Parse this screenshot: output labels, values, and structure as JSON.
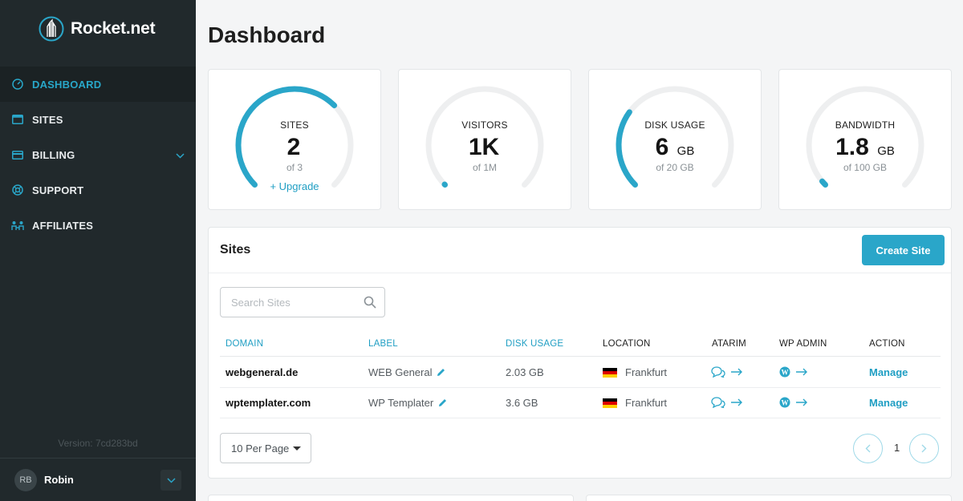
{
  "brand": {
    "name": "Rocket.net"
  },
  "nav": {
    "items": [
      {
        "label": "DASHBOARD",
        "icon": "dashboard-icon",
        "active": true
      },
      {
        "label": "SITES",
        "icon": "sites-icon"
      },
      {
        "label": "BILLING",
        "icon": "billing-icon",
        "has_submenu": true
      },
      {
        "label": "SUPPORT",
        "icon": "support-icon"
      },
      {
        "label": "AFFILIATES",
        "icon": "affiliates-icon"
      }
    ]
  },
  "version": "Version: 7cd283bd",
  "user": {
    "initials": "RB",
    "name": "Robin"
  },
  "page": {
    "title": "Dashboard"
  },
  "stats": [
    {
      "label": "SITES",
      "value": "2",
      "unit": "",
      "sub": "of 3",
      "fraction": 0.667,
      "action": "+ Upgrade"
    },
    {
      "label": "VISITORS",
      "value": "1K",
      "unit": "",
      "sub": "of 1M",
      "fraction": 0.001
    },
    {
      "label": "DISK USAGE",
      "value": "6",
      "unit": "GB",
      "sub": "of 20 GB",
      "fraction": 0.3
    },
    {
      "label": "BANDWIDTH",
      "value": "1.8",
      "unit": "GB",
      "sub": "of 100 GB",
      "fraction": 0.018
    }
  ],
  "sites": {
    "title": "Sites",
    "create_label": "Create Site",
    "search_placeholder": "Search Sites",
    "columns": {
      "domain": "DOMAIN",
      "label": "LABEL",
      "disk": "DISK USAGE",
      "location": "LOCATION",
      "atarim": "ATARIM",
      "wpadmin": "WP ADMIN",
      "action": "ACTION"
    },
    "rows": [
      {
        "domain": "webgeneral.de",
        "label": "WEB General",
        "disk": "2.03 GB",
        "location": "Frankfurt",
        "action": "Manage"
      },
      {
        "domain": "wptemplater.com",
        "label": "WP Templater",
        "disk": "3.6 GB",
        "location": "Frankfurt",
        "action": "Manage"
      }
    ],
    "per_page": "10 Per Page",
    "current_page": "1"
  },
  "colors": {
    "accent": "#2aa6c9",
    "sidebar": "#21292c",
    "track": "#eeeff0"
  }
}
